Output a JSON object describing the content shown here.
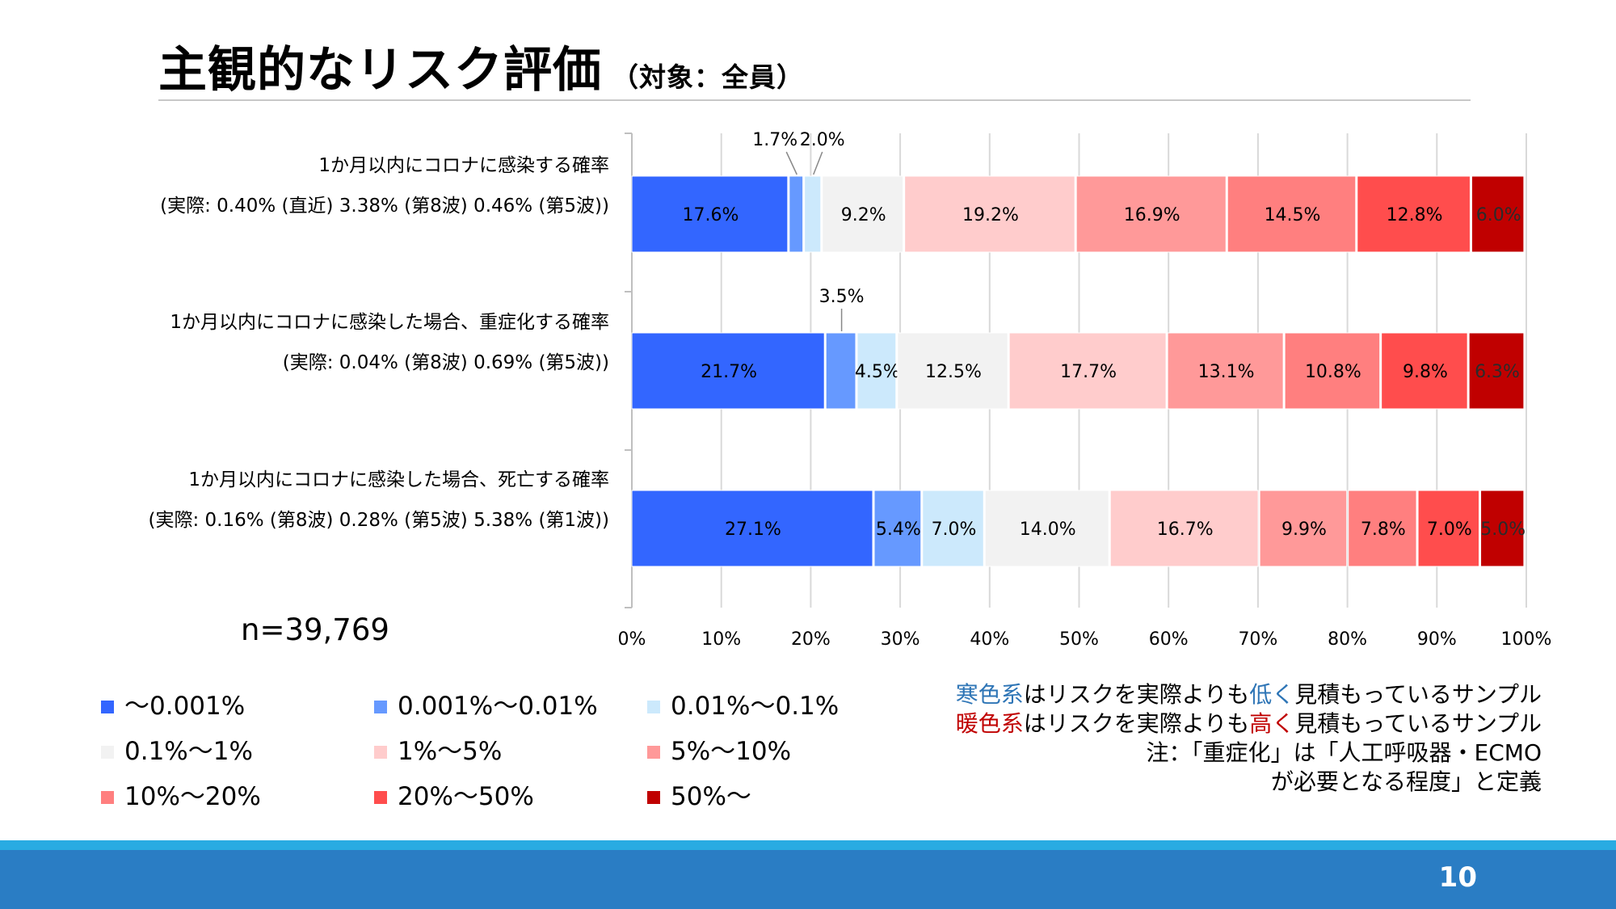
{
  "title": "主観的なリスク評価",
  "subtitle": "（対象：全員）",
  "sample_size": "n=39,769",
  "notes": [
    {
      "highlight": "寒色系",
      "highlight_color": "#2e75b6",
      "before": "",
      "middle": "はリスクを実際よりも",
      "emph": "低く",
      "emph_color": "#2e75b6",
      "after": "見積もっているサンプル"
    },
    {
      "highlight": "暖色系",
      "highlight_color": "#c00000",
      "before": "",
      "middle": "はリスクを実際よりも",
      "emph": "高く",
      "emph_color": "#c00000",
      "after": "見積もっているサンプル"
    },
    {
      "plain": "注：「重症化」は「人工呼吸器・ECMO"
    },
    {
      "plain": "が必要となる程度」と定義"
    }
  ],
  "page_number": "10",
  "chart_data": {
    "type": "bar",
    "orientation": "horizontal",
    "stacked": true,
    "percent": true,
    "xlim": [
      0,
      100
    ],
    "x_ticks": [
      "0%",
      "10%",
      "20%",
      "30%",
      "40%",
      "50%",
      "60%",
      "70%",
      "80%",
      "90%",
      "100%"
    ],
    "grid": true,
    "legend_position": "bottom",
    "categories": [
      {
        "line1": "1か月以内にコロナに感染する確率",
        "line2": "(実際: 0.40% (直近) 3.38% (第8波) 0.46% (第5波))"
      },
      {
        "line1": "1か月以内にコロナに感染した場合、重症化する確率",
        "line2": "(実際: 0.04% (第8波) 0.69% (第5波))"
      },
      {
        "line1": "1か月以内にコロナに感染した場合、死亡する確率",
        "line2": "(実際: 0.16% (第8波) 0.28% (第5波) 5.38% (第1波))"
      }
    ],
    "series": [
      {
        "name": "～0.001%",
        "color": "#3366ff",
        "values": [
          17.6,
          21.7,
          27.1
        ],
        "labels": [
          "17.6%",
          "21.7%",
          "27.1%"
        ]
      },
      {
        "name": "0.001%～0.01%",
        "color": "#6699ff",
        "values": [
          1.7,
          3.5,
          5.4
        ],
        "labels": [
          "1.7%",
          "3.5%",
          "5.4%"
        ]
      },
      {
        "name": "0.01%～0.1%",
        "color": "#cce9fc",
        "values": [
          2.0,
          4.5,
          7.0
        ],
        "labels": [
          "2.0%",
          "4.5%",
          "7.0%"
        ]
      },
      {
        "name": "0.1%～1%",
        "color": "#f2f2f2",
        "values": [
          9.2,
          12.5,
          14.0
        ],
        "labels": [
          "9.2%",
          "12.5%",
          "14.0%"
        ]
      },
      {
        "name": "1%～5%",
        "color": "#ffcccc",
        "values": [
          19.2,
          17.7,
          16.7
        ],
        "labels": [
          "19.2%",
          "17.7%",
          "16.7%"
        ]
      },
      {
        "name": "5%～10%",
        "color": "#ff9999",
        "values": [
          16.9,
          13.1,
          9.9
        ],
        "labels": [
          "16.9%",
          "13.1%",
          "9.9%"
        ]
      },
      {
        "name": "10%～20%",
        "color": "#ff7f7f",
        "values": [
          14.5,
          10.8,
          7.8
        ],
        "labels": [
          "14.5%",
          "10.8%",
          "7.8%"
        ]
      },
      {
        "name": "20%～50%",
        "color": "#ff4d4d",
        "values": [
          12.8,
          9.8,
          7.0
        ],
        "labels": [
          "12.8%",
          "9.8%",
          "7.0%"
        ]
      },
      {
        "name": "50%～",
        "color": "#c00000",
        "values": [
          6.0,
          6.3,
          5.0
        ],
        "labels": [
          "6.0%",
          "6.3%",
          "5.0%"
        ]
      }
    ]
  }
}
